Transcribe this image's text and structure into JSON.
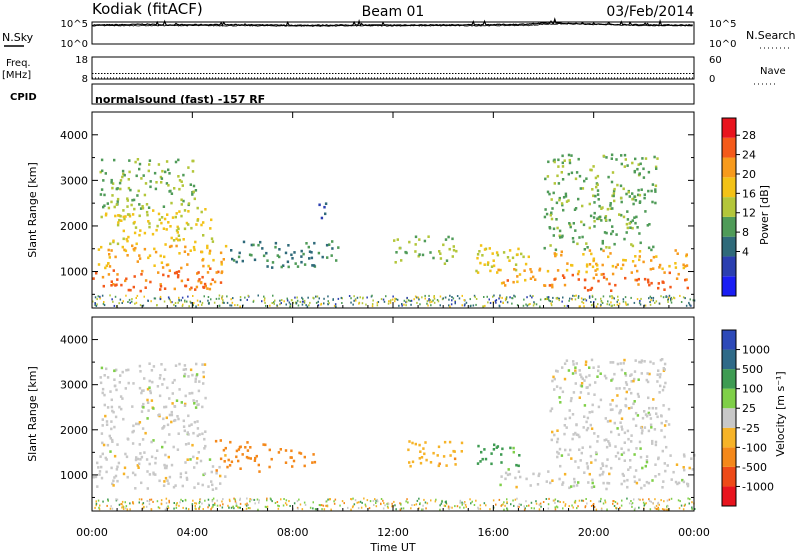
{
  "header": {
    "station": "Kodiak (fitACF)",
    "beam": "Beam 01",
    "date": "03/Feb/2014"
  },
  "chart_data": [
    {
      "type": "line",
      "panel": "noise",
      "left_label": "N.Sky",
      "right_label": "N.Search",
      "left_ticks": [
        "10^5",
        "10^0"
      ],
      "right_ticks": [
        "10^5",
        "10^0"
      ],
      "x_range_hours": [
        0,
        24
      ],
      "series": [
        {
          "values": [
            [
              0,
              0.86
            ],
            [
              1.5,
              0.88
            ],
            [
              2,
              0.9
            ],
            [
              3,
              0.87
            ],
            [
              5,
              0.88
            ],
            [
              8,
              0.85
            ],
            [
              10,
              0.86
            ],
            [
              12,
              0.86
            ],
            [
              15,
              0.87
            ],
            [
              17,
              0.89
            ],
            [
              18.2,
              0.95
            ],
            [
              19,
              0.93
            ],
            [
              20,
              0.9
            ],
            [
              22,
              0.87
            ],
            [
              24,
              0.86
            ]
          ]
        },
        {
          "values": [
            [
              0,
              0.83
            ],
            [
              3,
              0.84
            ],
            [
              6,
              0.83
            ],
            [
              9,
              0.82
            ],
            [
              12,
              0.83
            ],
            [
              15,
              0.83
            ],
            [
              17.5,
              0.85
            ],
            [
              18,
              0.9
            ],
            [
              19,
              0.92
            ],
            [
              20.5,
              0.88
            ],
            [
              22,
              0.84
            ],
            [
              24,
              0.83
            ]
          ]
        }
      ]
    },
    {
      "type": "line",
      "panel": "frequency",
      "left_label": "Freq.",
      "left_unit": "[MHz]",
      "right_label": "Nave",
      "left_ticks": [
        "18",
        "8"
      ],
      "right_ticks": [
        "60",
        "0"
      ],
      "x_range_hours": [
        0,
        24
      ],
      "series": [
        {
          "values": [
            [
              0,
              10.5
            ],
            [
              24,
              10.5
            ]
          ]
        },
        {
          "values": [
            [
              0,
              0.4
            ],
            [
              24,
              0.4
            ]
          ]
        }
      ]
    },
    {
      "type": "table",
      "panel": "cpid",
      "label": "CPID",
      "value": "normalsound (fast) -157 RF"
    },
    {
      "type": "heatmap",
      "panel": "power",
      "ylabel": "Slant Range [km]",
      "yticks": [
        1000,
        2000,
        3000,
        4000
      ],
      "ylim": [
        200,
        4500
      ],
      "xlim_hours": [
        0,
        24
      ],
      "colorbar_label": "Power [dB]",
      "colorbar_ticks": [
        "28",
        "24",
        "20",
        "16",
        "12",
        "8",
        "4"
      ],
      "colors": [
        "#e8141e",
        "#f45a1a",
        "#f79a1c",
        "#f3c217",
        "#b3c63a",
        "#4f9b58",
        "#2f6a7a",
        "#2b3fb0",
        "#1a1ef4"
      ],
      "regions": [
        {
          "t0": 0.0,
          "t1": 5.2,
          "r0": 600,
          "r1": 1100,
          "v": 27
        },
        {
          "t0": 0.2,
          "t1": 5.6,
          "r0": 1100,
          "r1": 1600,
          "v": 22
        },
        {
          "t0": 0.3,
          "t1": 4.8,
          "r0": 1600,
          "r1": 2400,
          "v": 18
        },
        {
          "t0": 0.3,
          "t1": 4.2,
          "r0": 2400,
          "r1": 3500,
          "v": 14
        },
        {
          "t0": 5.5,
          "t1": 9.8,
          "r0": 1100,
          "r1": 1700,
          "v": 10
        },
        {
          "t0": 9.0,
          "t1": 9.6,
          "r0": 2200,
          "r1": 2600,
          "v": 6
        },
        {
          "t0": 12.0,
          "t1": 14.6,
          "r0": 1200,
          "r1": 1800,
          "v": 14
        },
        {
          "t0": 15.0,
          "t1": 17.4,
          "r0": 1000,
          "r1": 1600,
          "v": 18
        },
        {
          "t0": 16.0,
          "t1": 18.2,
          "r0": 700,
          "r1": 1100,
          "v": 24
        },
        {
          "t0": 18.2,
          "t1": 24.0,
          "r0": 600,
          "r1": 1000,
          "v": 27
        },
        {
          "t0": 18.4,
          "t1": 24.0,
          "r0": 1000,
          "r1": 1500,
          "v": 22
        },
        {
          "t0": 18.0,
          "t1": 22.5,
          "r0": 1500,
          "r1": 3600,
          "v": 13
        }
      ]
    },
    {
      "type": "heatmap",
      "panel": "velocity",
      "ylabel": "Slant Range [km]",
      "yticks": [
        1000,
        2000,
        3000,
        4000
      ],
      "ylim": [
        200,
        4500
      ],
      "xlabel": "Time UT",
      "xticks": [
        "00:00",
        "04:00",
        "08:00",
        "12:00",
        "16:00",
        "20:00",
        "00:00"
      ],
      "xlim_hours": [
        0,
        24
      ],
      "colorbar_label": "Velocity [m s⁻¹]",
      "colorbar_ticks": [
        "1000",
        "500",
        "100",
        "25",
        "-25",
        "-100",
        "-500",
        "-1000"
      ],
      "colors": [
        "#e8141e",
        "#ee4a18",
        "#f4881a",
        "#f6b328",
        "#c8c8c8",
        "#7fcf48",
        "#3e9b52",
        "#2f6a88",
        "#2d49b8"
      ],
      "regions": [
        {
          "t0": 0.0,
          "t1": 5.3,
          "r0": 700,
          "r1": 1500,
          "v": 0
        },
        {
          "t0": 0.3,
          "t1": 4.5,
          "r0": 1500,
          "r1": 3500,
          "v": 0
        },
        {
          "t0": 4.8,
          "t1": 7.0,
          "r0": 1100,
          "r1": 1800,
          "v": -200
        },
        {
          "t0": 7.0,
          "t1": 9.0,
          "r0": 1200,
          "r1": 1600,
          "v": -150
        },
        {
          "t0": 12.5,
          "t1": 14.8,
          "r0": 1200,
          "r1": 1800,
          "v": -80
        },
        {
          "t0": 15.3,
          "t1": 17.0,
          "r0": 1100,
          "r1": 1700,
          "v": 120
        },
        {
          "t0": 16.2,
          "t1": 18.0,
          "r0": 700,
          "r1": 1100,
          "v": 0
        },
        {
          "t0": 18.0,
          "t1": 24.0,
          "r0": 700,
          "r1": 1500,
          "v": 0
        },
        {
          "t0": 18.2,
          "t1": 23.0,
          "r0": 1500,
          "r1": 3600,
          "v": 0
        }
      ]
    }
  ]
}
